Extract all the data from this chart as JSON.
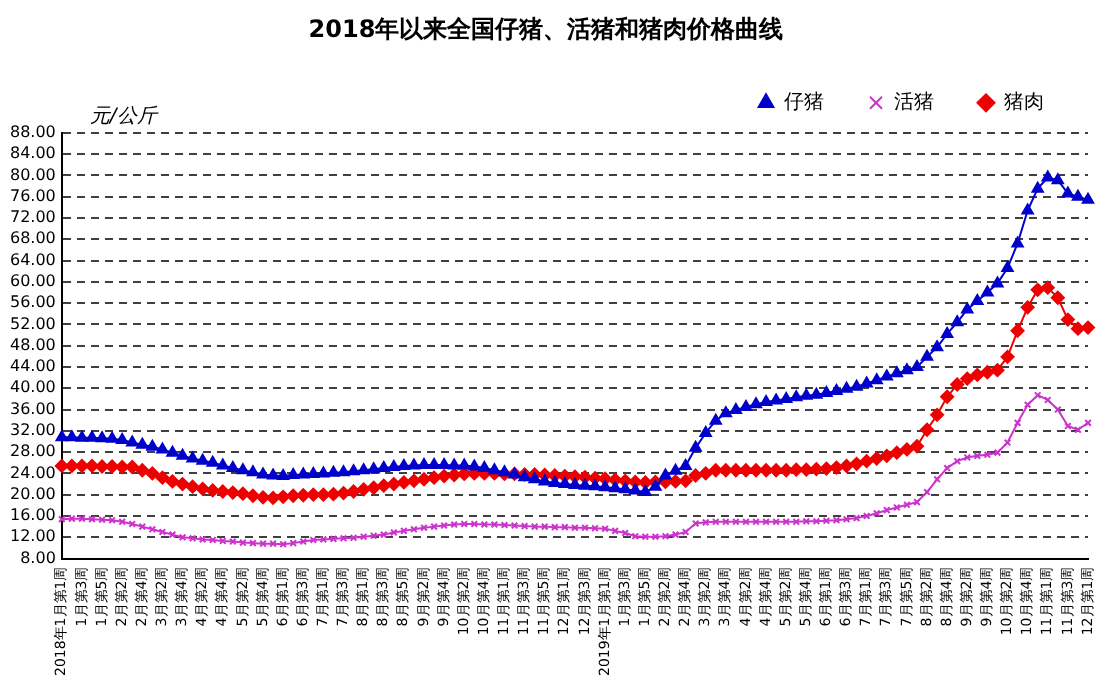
{
  "chart_data": {
    "type": "line",
    "title": "2018年以来全国仔猪、活猪和猪肉价格曲线",
    "ylabel": "元/公斤",
    "categories": [
      "2018年1月第1周",
      null,
      "1月第3周",
      null,
      "1月第5周",
      null,
      "2月第2周",
      null,
      "2月第4周",
      null,
      "3月第2周",
      null,
      "3月第4周",
      null,
      "4月第2周",
      null,
      "4月第4周",
      null,
      "5月第2周",
      null,
      "5月第4周",
      null,
      "6月第1周",
      null,
      "6月第3周",
      null,
      "7月第1周",
      null,
      "7月第3周",
      null,
      "8月第1周",
      null,
      "8月第3周",
      null,
      "8月第5周",
      null,
      "9月第2周",
      null,
      "9月第4周",
      null,
      "10月第2周",
      null,
      "10月第4周",
      null,
      "11月第1周",
      null,
      "11月第3周",
      null,
      "11月第5周",
      null,
      "12月第1周",
      null,
      "12月第3周",
      null,
      "2019年1月第1周",
      null,
      "1月第3周",
      null,
      "1月第5周",
      null,
      "2月第2周",
      null,
      "2月第4周",
      null,
      "3月第2周",
      null,
      "3月第4周",
      null,
      "4月第2周",
      null,
      "4月第4周",
      null,
      "5月第2周",
      null,
      "5月第4周",
      null,
      "6月第1周",
      null,
      "6月第3周",
      null,
      "7月第1周",
      null,
      "7月第3周",
      null,
      "7月第5周",
      null,
      "8月第2周",
      null,
      "8月第4周",
      null,
      "9月第2周",
      null,
      "9月第4周",
      null,
      "10月第2周",
      null,
      "10月第4周",
      null,
      "11月第1周",
      null,
      "11月第3周",
      null,
      "12月第1周"
    ],
    "series": [
      {
        "name": "仔猪",
        "color": "#0000cc",
        "marker": "triangle",
        "values": [
          30.8,
          30.8,
          30.7,
          30.7,
          30.6,
          30.5,
          30.3,
          29.8,
          29.4,
          29.0,
          28.5,
          27.9,
          27.3,
          26.8,
          26.4,
          26.0,
          25.5,
          25.0,
          24.6,
          24.2,
          23.8,
          23.6,
          23.5,
          23.7,
          23.8,
          23.9,
          24.0,
          24.1,
          24.2,
          24.4,
          24.6,
          24.8,
          25.0,
          25.2,
          25.4,
          25.5,
          25.6,
          25.6,
          25.6,
          25.5,
          25.5,
          25.3,
          25.0,
          24.6,
          24.2,
          23.8,
          23.3,
          22.9,
          22.5,
          22.2,
          22.0,
          21.8,
          21.7,
          21.6,
          21.4,
          21.2,
          21.0,
          20.8,
          20.5,
          21.5,
          23.6,
          24.5,
          25.4,
          28.8,
          31.6,
          33.9,
          35.3,
          35.9,
          36.5,
          37.0,
          37.4,
          37.7,
          38.0,
          38.3,
          38.6,
          38.8,
          39.1,
          39.5,
          39.9,
          40.3,
          40.9,
          41.5,
          42.2,
          42.8,
          43.4,
          44.0,
          45.9,
          47.7,
          50.2,
          52.4,
          54.8,
          56.4,
          58.0,
          59.7,
          62.6,
          67.2,
          73.4,
          77.5,
          79.6,
          79.1,
          76.6,
          76.0,
          75.4
        ]
      },
      {
        "name": "活猪",
        "color": "#cc33cc",
        "marker": "cross",
        "values": [
          15.4,
          15.5,
          15.5,
          15.4,
          15.3,
          15.2,
          14.9,
          14.5,
          14.0,
          13.5,
          13.0,
          12.5,
          12.0,
          11.8,
          11.6,
          11.5,
          11.3,
          11.2,
          11.0,
          10.9,
          10.8,
          10.8,
          10.7,
          10.9,
          11.2,
          11.5,
          11.6,
          11.7,
          11.8,
          11.9,
          12.1,
          12.3,
          12.5,
          12.9,
          13.2,
          13.5,
          13.8,
          14.0,
          14.2,
          14.4,
          14.5,
          14.5,
          14.4,
          14.4,
          14.3,
          14.2,
          14.1,
          14.0,
          14.0,
          13.9,
          13.9,
          13.8,
          13.8,
          13.7,
          13.6,
          13.2,
          12.8,
          12.2,
          12.1,
          12.1,
          12.2,
          12.5,
          13.0,
          14.6,
          14.8,
          14.9,
          14.9,
          14.9,
          14.9,
          14.9,
          14.9,
          14.9,
          14.9,
          14.9,
          15.0,
          15.0,
          15.1,
          15.2,
          15.4,
          15.6,
          16.0,
          16.5,
          17.1,
          17.6,
          18.1,
          18.6,
          20.5,
          22.9,
          25.0,
          26.3,
          27.0,
          27.3,
          27.5,
          27.9,
          29.8,
          33.5,
          36.9,
          38.7,
          37.8,
          36.0,
          32.9,
          32.2,
          33.5
        ]
      },
      {
        "name": "猪肉",
        "color": "#ee0000",
        "marker": "diamond",
        "values": [
          25.4,
          25.4,
          25.4,
          25.4,
          25.3,
          25.3,
          25.2,
          25.2,
          24.6,
          24.0,
          23.2,
          22.5,
          22.0,
          21.5,
          21.1,
          20.8,
          20.6,
          20.4,
          20.2,
          19.8,
          19.5,
          19.4,
          19.6,
          19.8,
          19.9,
          20.0,
          20.0,
          20.1,
          20.3,
          20.6,
          21.0,
          21.3,
          21.7,
          22.0,
          22.3,
          22.6,
          22.9,
          23.2,
          23.5,
          23.7,
          23.9,
          24.0,
          24.0,
          24.0,
          23.9,
          23.9,
          23.8,
          23.8,
          23.7,
          23.6,
          23.5,
          23.4,
          23.3,
          23.1,
          23.0,
          22.8,
          22.6,
          22.4,
          22.3,
          22.4,
          22.4,
          22.5,
          22.6,
          23.6,
          24.0,
          24.6,
          24.6,
          24.6,
          24.6,
          24.6,
          24.6,
          24.6,
          24.6,
          24.7,
          24.7,
          24.8,
          24.9,
          25.1,
          25.4,
          25.8,
          26.3,
          26.8,
          27.3,
          27.9,
          28.5,
          29.1,
          32.2,
          35.0,
          38.4,
          40.7,
          41.8,
          42.5,
          43.0,
          43.4,
          45.9,
          50.8,
          55.2,
          58.5,
          58.9,
          57.0,
          52.9,
          51.2,
          51.4
        ]
      }
    ],
    "ylim": [
      8,
      88
    ],
    "yticks": [
      {
        "value": 8,
        "label": "8.00"
      },
      {
        "value": 12,
        "label": "12.00"
      },
      {
        "value": 16,
        "label": "16.00"
      },
      {
        "value": 20,
        "label": "20.00"
      },
      {
        "value": 24,
        "label": "24.00"
      },
      {
        "value": 28,
        "label": "28.00"
      },
      {
        "value": 32,
        "label": "32.00"
      },
      {
        "value": 36,
        "label": "36.00"
      },
      {
        "value": 40,
        "label": "40.00"
      },
      {
        "value": 44,
        "label": "44.00"
      },
      {
        "value": 48,
        "label": "48.00"
      },
      {
        "value": 52,
        "label": "52.00"
      },
      {
        "value": 56,
        "label": "56.00"
      },
      {
        "value": 60,
        "label": "60.00"
      },
      {
        "value": 64,
        "label": "64.00"
      },
      {
        "value": 68,
        "label": "68.00"
      },
      {
        "value": 72,
        "label": "72.00"
      },
      {
        "value": 76,
        "label": "76.00"
      },
      {
        "value": 80,
        "label": "80.00"
      },
      {
        "value": 84,
        "label": "84.00"
      },
      {
        "value": 88,
        "label": "88.00"
      }
    ],
    "grid": "y",
    "legend": "top right",
    "line_style": "solid"
  }
}
